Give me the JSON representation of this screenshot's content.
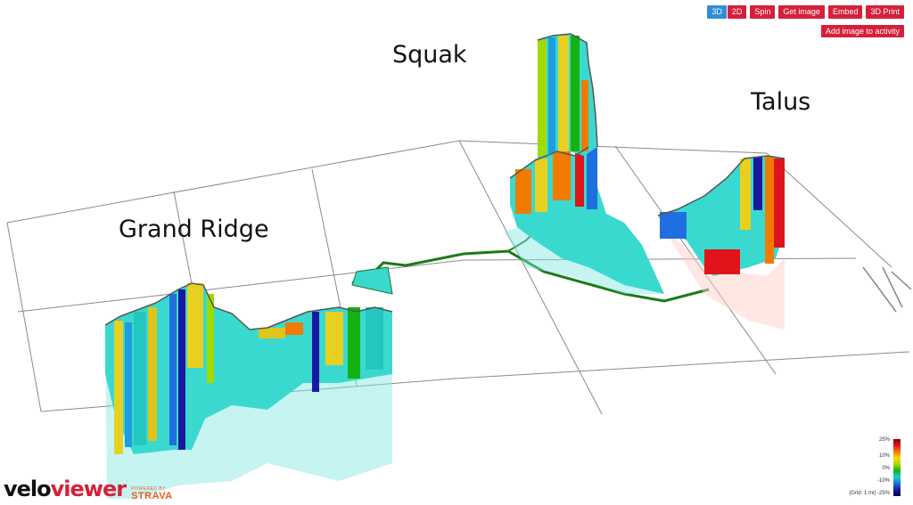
{
  "toolbar": {
    "view_3d": "3D",
    "view_2d": "2D",
    "spin": "Spin",
    "get_image": "Get image",
    "embed": "Embed",
    "print_3d": "3D Print",
    "add_image": "Add image to activity"
  },
  "labels": {
    "grand_ridge": "Grand Ridge",
    "squak": "Squak",
    "talus": "Talus"
  },
  "brand": {
    "name_black": "velo",
    "name_red": "viewer",
    "powered_by": "POWERED BY",
    "partner": "STRAVA"
  },
  "legend": {
    "max": "25%",
    "mid_high": "10%",
    "zero": "0%",
    "mid_low": "-10%",
    "grid_note": "(Grid: 1 mi) -25%"
  },
  "colors": {
    "accent": "#d6203a",
    "active": "#2f8fd6"
  }
}
